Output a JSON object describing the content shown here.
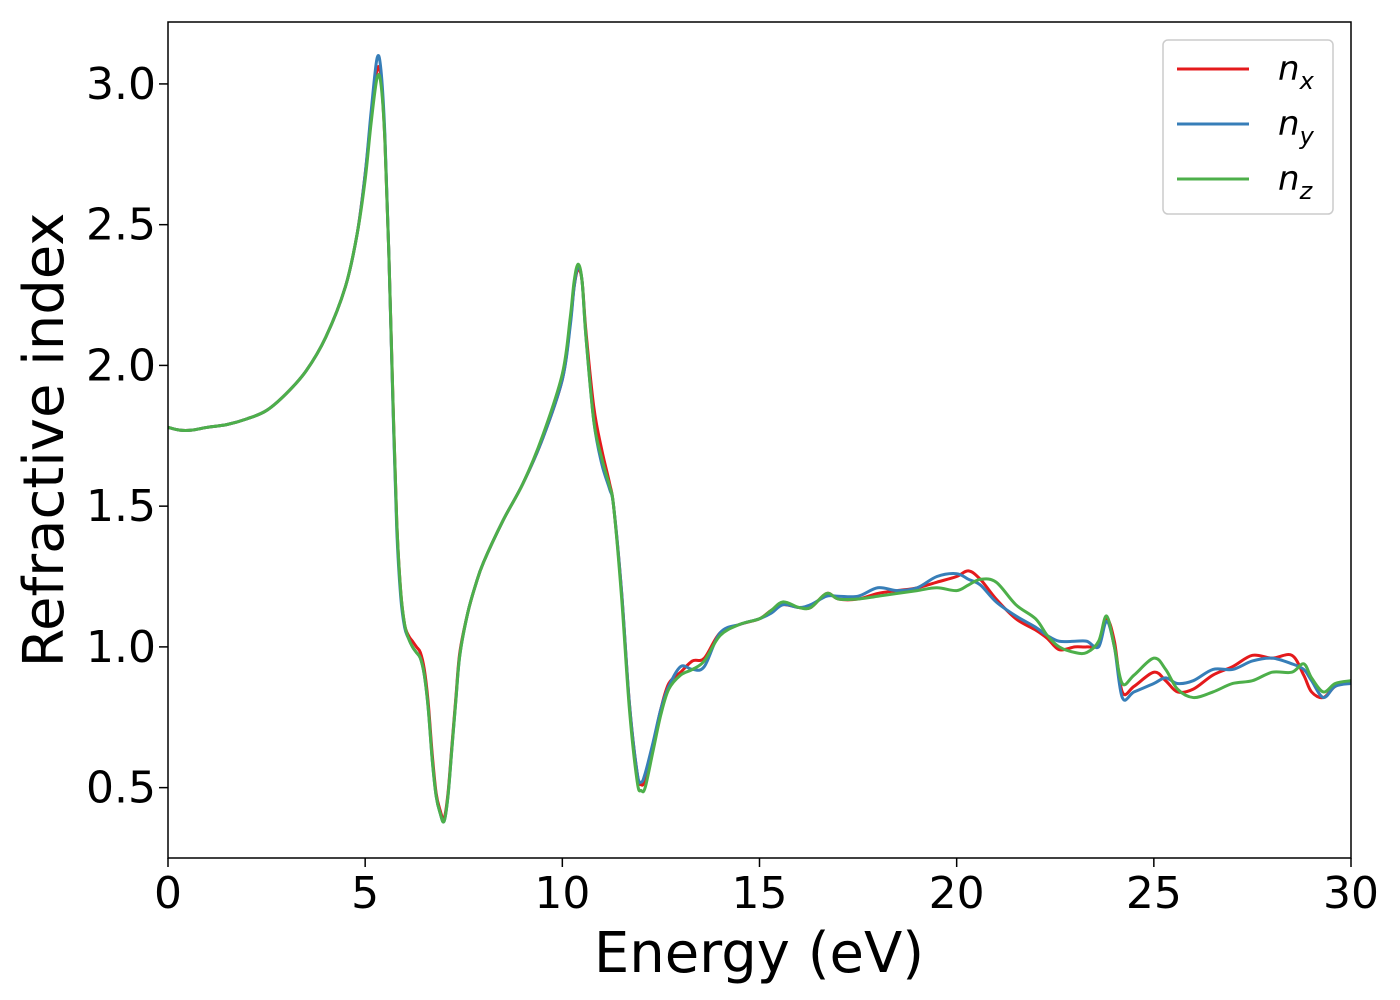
{
  "chart_data": {
    "type": "line",
    "title": "",
    "xlabel": "Energy (eV)",
    "ylabel": "Refractive index",
    "xlim": [
      0,
      30
    ],
    "ylim": [
      0.25,
      3.22
    ],
    "xticks": [
      0,
      5,
      10,
      15,
      20,
      25,
      30
    ],
    "yticks": [
      0.5,
      1.0,
      1.5,
      2.0,
      2.5,
      3.0
    ],
    "xtick_labels": [
      "0",
      "5",
      "10",
      "15",
      "20",
      "25",
      "30"
    ],
    "ytick_labels": [
      "0.5",
      "1.0",
      "1.5",
      "2.0",
      "2.5",
      "3.0"
    ],
    "grid": false,
    "legend_position": "top-right",
    "series": [
      {
        "name": "n",
        "subscript": "x",
        "color": "#e41a1c",
        "x": [
          0,
          0.3,
          0.6,
          1,
          1.5,
          2,
          2.5,
          3,
          3.5,
          4,
          4.5,
          4.8,
          5,
          5.15,
          5.3,
          5.4,
          5.5,
          5.6,
          5.7,
          5.8,
          5.9,
          6,
          6.1,
          6.2,
          6.3,
          6.4,
          6.5,
          6.6,
          6.7,
          6.8,
          6.9,
          7,
          7.1,
          7.2,
          7.3,
          7.4,
          7.6,
          7.8,
          8,
          8.5,
          9,
          9.5,
          10,
          10.2,
          10.3,
          10.4,
          10.5,
          10.6,
          10.8,
          11,
          11.2,
          11.3,
          11.5,
          11.7,
          11.9,
          12,
          12.1,
          12.3,
          12.5,
          12.7,
          13,
          13.3,
          13.6,
          14,
          14.5,
          15,
          15.3,
          15.6,
          16,
          16.3,
          16.7,
          17,
          17.5,
          18,
          18.5,
          19,
          19.5,
          20,
          20.3,
          20.6,
          21,
          21.5,
          22,
          22.3,
          22.6,
          23,
          23.3,
          23.6,
          23.8,
          24,
          24.2,
          24.5,
          25,
          25.3,
          25.6,
          26,
          26.5,
          27,
          27.5,
          28,
          28.5,
          28.8,
          29,
          29.3,
          29.6,
          30
        ],
        "y": [
          1.78,
          1.77,
          1.77,
          1.78,
          1.79,
          1.81,
          1.84,
          1.9,
          1.98,
          2.1,
          2.28,
          2.47,
          2.68,
          2.88,
          3.05,
          3.02,
          2.8,
          2.4,
          1.9,
          1.45,
          1.2,
          1.08,
          1.04,
          1.02,
          1.0,
          0.98,
          0.92,
          0.8,
          0.62,
          0.48,
          0.42,
          0.39,
          0.48,
          0.65,
          0.82,
          0.98,
          1.12,
          1.22,
          1.3,
          1.45,
          1.58,
          1.74,
          1.95,
          2.15,
          2.28,
          2.34,
          2.3,
          2.12,
          1.85,
          1.7,
          1.58,
          1.5,
          1.2,
          0.8,
          0.55,
          0.51,
          0.53,
          0.65,
          0.78,
          0.87,
          0.91,
          0.95,
          0.96,
          1.05,
          1.08,
          1.1,
          1.13,
          1.15,
          1.14,
          1.14,
          1.19,
          1.17,
          1.17,
          1.19,
          1.2,
          1.21,
          1.23,
          1.25,
          1.27,
          1.24,
          1.17,
          1.1,
          1.06,
          1.03,
          0.99,
          1.0,
          1.0,
          1.01,
          1.1,
          1.02,
          0.84,
          0.86,
          0.91,
          0.88,
          0.84,
          0.85,
          0.9,
          0.93,
          0.97,
          0.96,
          0.97,
          0.9,
          0.84,
          0.82,
          0.86,
          0.88
        ]
      },
      {
        "name": "n",
        "subscript": "y",
        "color": "#377eb8",
        "x": [
          0,
          0.3,
          0.6,
          1,
          1.5,
          2,
          2.5,
          3,
          3.5,
          4,
          4.5,
          4.8,
          5,
          5.15,
          5.3,
          5.4,
          5.5,
          5.6,
          5.7,
          5.8,
          5.9,
          6,
          6.1,
          6.2,
          6.3,
          6.4,
          6.5,
          6.6,
          6.7,
          6.8,
          6.9,
          7,
          7.1,
          7.2,
          7.3,
          7.4,
          7.6,
          7.8,
          8,
          8.5,
          9,
          9.5,
          10,
          10.2,
          10.3,
          10.4,
          10.5,
          10.6,
          10.8,
          11,
          11.2,
          11.3,
          11.5,
          11.7,
          11.9,
          12,
          12.1,
          12.3,
          12.5,
          12.7,
          13,
          13.3,
          13.6,
          14,
          14.5,
          15,
          15.3,
          15.6,
          16,
          16.3,
          16.7,
          17,
          17.5,
          18,
          18.5,
          19,
          19.5,
          20,
          20.3,
          20.6,
          21,
          21.5,
          22,
          22.3,
          22.6,
          23,
          23.3,
          23.6,
          23.8,
          24,
          24.2,
          24.5,
          25,
          25.3,
          25.6,
          26,
          26.5,
          27,
          27.5,
          28,
          28.5,
          28.8,
          29,
          29.3,
          29.6,
          30
        ],
        "y": [
          1.78,
          1.77,
          1.77,
          1.78,
          1.79,
          1.81,
          1.84,
          1.9,
          1.98,
          2.1,
          2.28,
          2.47,
          2.68,
          2.9,
          3.09,
          3.05,
          2.82,
          2.4,
          1.88,
          1.42,
          1.18,
          1.07,
          1.03,
          1.0,
          0.98,
          0.96,
          0.9,
          0.78,
          0.6,
          0.47,
          0.41,
          0.38,
          0.47,
          0.64,
          0.81,
          0.97,
          1.12,
          1.22,
          1.3,
          1.45,
          1.58,
          1.74,
          1.95,
          2.14,
          2.28,
          2.35,
          2.3,
          2.1,
          1.8,
          1.65,
          1.56,
          1.5,
          1.2,
          0.8,
          0.55,
          0.52,
          0.55,
          0.66,
          0.78,
          0.86,
          0.93,
          0.92,
          0.93,
          1.05,
          1.08,
          1.1,
          1.12,
          1.15,
          1.14,
          1.15,
          1.18,
          1.18,
          1.18,
          1.21,
          1.2,
          1.21,
          1.25,
          1.26,
          1.24,
          1.22,
          1.16,
          1.11,
          1.07,
          1.04,
          1.02,
          1.02,
          1.02,
          1.0,
          1.09,
          1.0,
          0.82,
          0.84,
          0.87,
          0.89,
          0.87,
          0.88,
          0.92,
          0.92,
          0.95,
          0.96,
          0.94,
          0.92,
          0.88,
          0.82,
          0.86,
          0.87
        ]
      },
      {
        "name": "n",
        "subscript": "z",
        "color": "#4daf4a",
        "x": [
          0,
          0.3,
          0.6,
          1,
          1.5,
          2,
          2.5,
          3,
          3.5,
          4,
          4.5,
          4.8,
          5,
          5.15,
          5.3,
          5.4,
          5.5,
          5.6,
          5.7,
          5.8,
          5.9,
          6,
          6.1,
          6.2,
          6.3,
          6.4,
          6.5,
          6.6,
          6.7,
          6.8,
          6.9,
          7,
          7.1,
          7.2,
          7.3,
          7.4,
          7.6,
          7.8,
          8,
          8.5,
          9,
          9.5,
          10,
          10.2,
          10.3,
          10.4,
          10.5,
          10.6,
          10.8,
          11,
          11.2,
          11.3,
          11.5,
          11.7,
          11.9,
          12,
          12.1,
          12.3,
          12.5,
          12.7,
          13,
          13.3,
          13.6,
          14,
          14.5,
          15,
          15.3,
          15.6,
          16,
          16.3,
          16.7,
          17,
          17.5,
          18,
          18.5,
          19,
          19.5,
          20,
          20.3,
          20.6,
          21,
          21.5,
          22,
          22.3,
          22.6,
          23,
          23.3,
          23.6,
          23.8,
          24,
          24.2,
          24.5,
          25,
          25.3,
          25.6,
          26,
          26.5,
          27,
          27.5,
          28,
          28.5,
          28.8,
          29,
          29.3,
          29.6,
          30
        ],
        "y": [
          1.78,
          1.77,
          1.77,
          1.78,
          1.79,
          1.81,
          1.84,
          1.9,
          1.98,
          2.1,
          2.28,
          2.47,
          2.66,
          2.86,
          3.02,
          3.0,
          2.8,
          2.4,
          1.9,
          1.45,
          1.2,
          1.08,
          1.03,
          1.0,
          0.98,
          0.96,
          0.9,
          0.78,
          0.6,
          0.47,
          0.41,
          0.38,
          0.47,
          0.64,
          0.81,
          0.97,
          1.12,
          1.22,
          1.3,
          1.45,
          1.58,
          1.75,
          1.97,
          2.17,
          2.3,
          2.36,
          2.3,
          2.1,
          1.8,
          1.67,
          1.57,
          1.5,
          1.18,
          0.78,
          0.52,
          0.49,
          0.5,
          0.63,
          0.76,
          0.85,
          0.9,
          0.92,
          0.95,
          1.04,
          1.08,
          1.1,
          1.13,
          1.16,
          1.14,
          1.14,
          1.19,
          1.17,
          1.17,
          1.18,
          1.19,
          1.2,
          1.21,
          1.2,
          1.22,
          1.24,
          1.23,
          1.15,
          1.1,
          1.04,
          1.0,
          0.98,
          0.98,
          1.02,
          1.11,
          1.0,
          0.87,
          0.9,
          0.96,
          0.92,
          0.85,
          0.82,
          0.84,
          0.87,
          0.88,
          0.91,
          0.91,
          0.94,
          0.89,
          0.84,
          0.87,
          0.88
        ]
      }
    ]
  }
}
